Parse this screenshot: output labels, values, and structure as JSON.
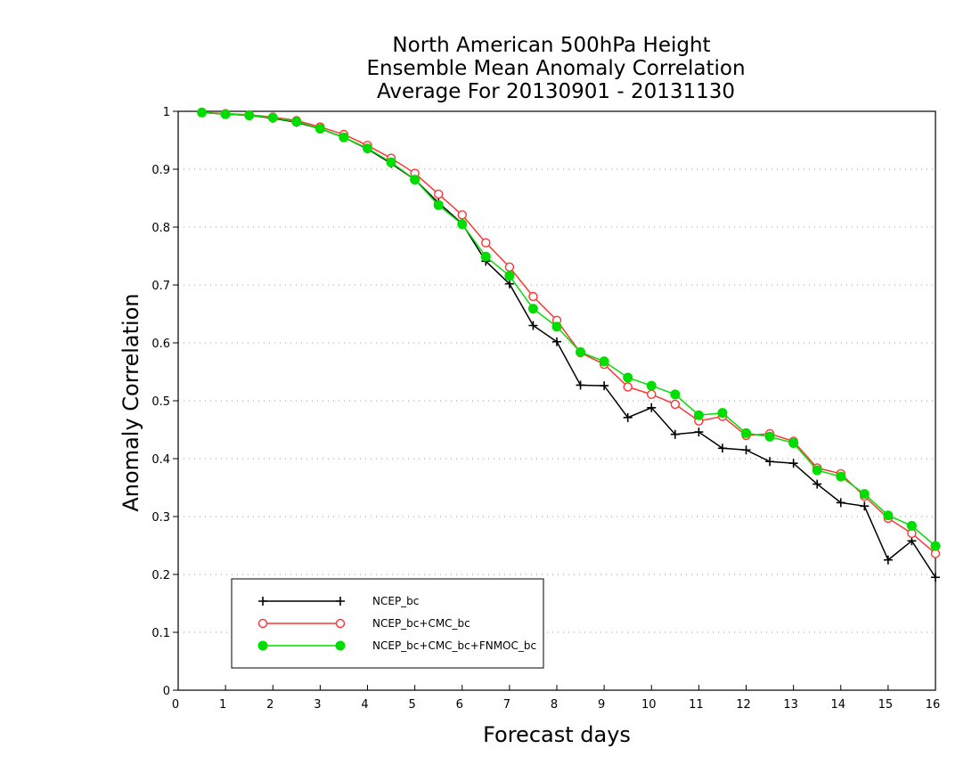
{
  "chart_data": {
    "type": "line",
    "title": [
      "North American 500hPa Height",
      "Ensemble Mean Anomaly Correlation",
      "Average For 20130901 - 20131130"
    ],
    "xlabel": "Forecast days",
    "ylabel": "Anomaly Correlation",
    "xlim": [
      0,
      16
    ],
    "ylim": [
      0,
      1
    ],
    "xticks": [
      "0",
      "1",
      "2",
      "3",
      "4",
      "5",
      "6",
      "7",
      "8",
      "9",
      "10",
      "11",
      "12",
      "13",
      "14",
      "15",
      "16"
    ],
    "yticks": [
      "0",
      "0.1",
      "0.2",
      "0.3",
      "0.4",
      "0.5",
      "0.6",
      "0.7",
      "0.8",
      "0.9",
      "1"
    ],
    "grid": "dotted horizontal",
    "legend_position": "lower-left",
    "x": [
      0.5,
      1,
      1.5,
      2,
      2.5,
      3,
      3.5,
      4,
      4.5,
      5,
      5.5,
      6,
      6.5,
      7,
      7.5,
      8,
      8.5,
      9,
      9.5,
      10,
      10.5,
      11,
      11.5,
      12,
      12.5,
      13,
      13.5,
      14,
      14.5,
      15,
      15.5,
      16
    ],
    "series": [
      {
        "name": "NCEP_bc",
        "color": "#000000",
        "marker": "plus",
        "values": [
          0.998,
          0.995,
          0.993,
          0.988,
          0.981,
          0.97,
          0.955,
          0.935,
          0.91,
          0.882,
          0.842,
          0.806,
          0.741,
          0.702,
          0.63,
          0.602,
          0.527,
          0.526,
          0.471,
          0.488,
          0.442,
          0.446,
          0.418,
          0.415,
          0.395,
          0.392,
          0.356,
          0.324,
          0.318,
          0.225,
          0.258,
          0.195
        ]
      },
      {
        "name": "NCEP_bc+CMC_bc",
        "color": "#ff3333",
        "marker": "open-circle",
        "values": [
          0.998,
          0.996,
          0.994,
          0.99,
          0.984,
          0.973,
          0.96,
          0.941,
          0.919,
          0.893,
          0.857,
          0.821,
          0.773,
          0.731,
          0.68,
          0.639,
          0.583,
          0.563,
          0.524,
          0.511,
          0.494,
          0.465,
          0.473,
          0.44,
          0.443,
          0.43,
          0.384,
          0.374,
          0.335,
          0.297,
          0.271,
          0.236
        ]
      },
      {
        "name": "NCEP_bc+CMC_bc+FNMOC_bc",
        "color": "#00dd00",
        "marker": "filled-circle",
        "values": [
          0.998,
          0.995,
          0.993,
          0.989,
          0.982,
          0.97,
          0.955,
          0.936,
          0.912,
          0.882,
          0.838,
          0.805,
          0.749,
          0.716,
          0.659,
          0.628,
          0.584,
          0.568,
          0.54,
          0.526,
          0.511,
          0.475,
          0.479,
          0.444,
          0.438,
          0.427,
          0.38,
          0.369,
          0.339,
          0.302,
          0.284,
          0.249
        ]
      }
    ]
  }
}
